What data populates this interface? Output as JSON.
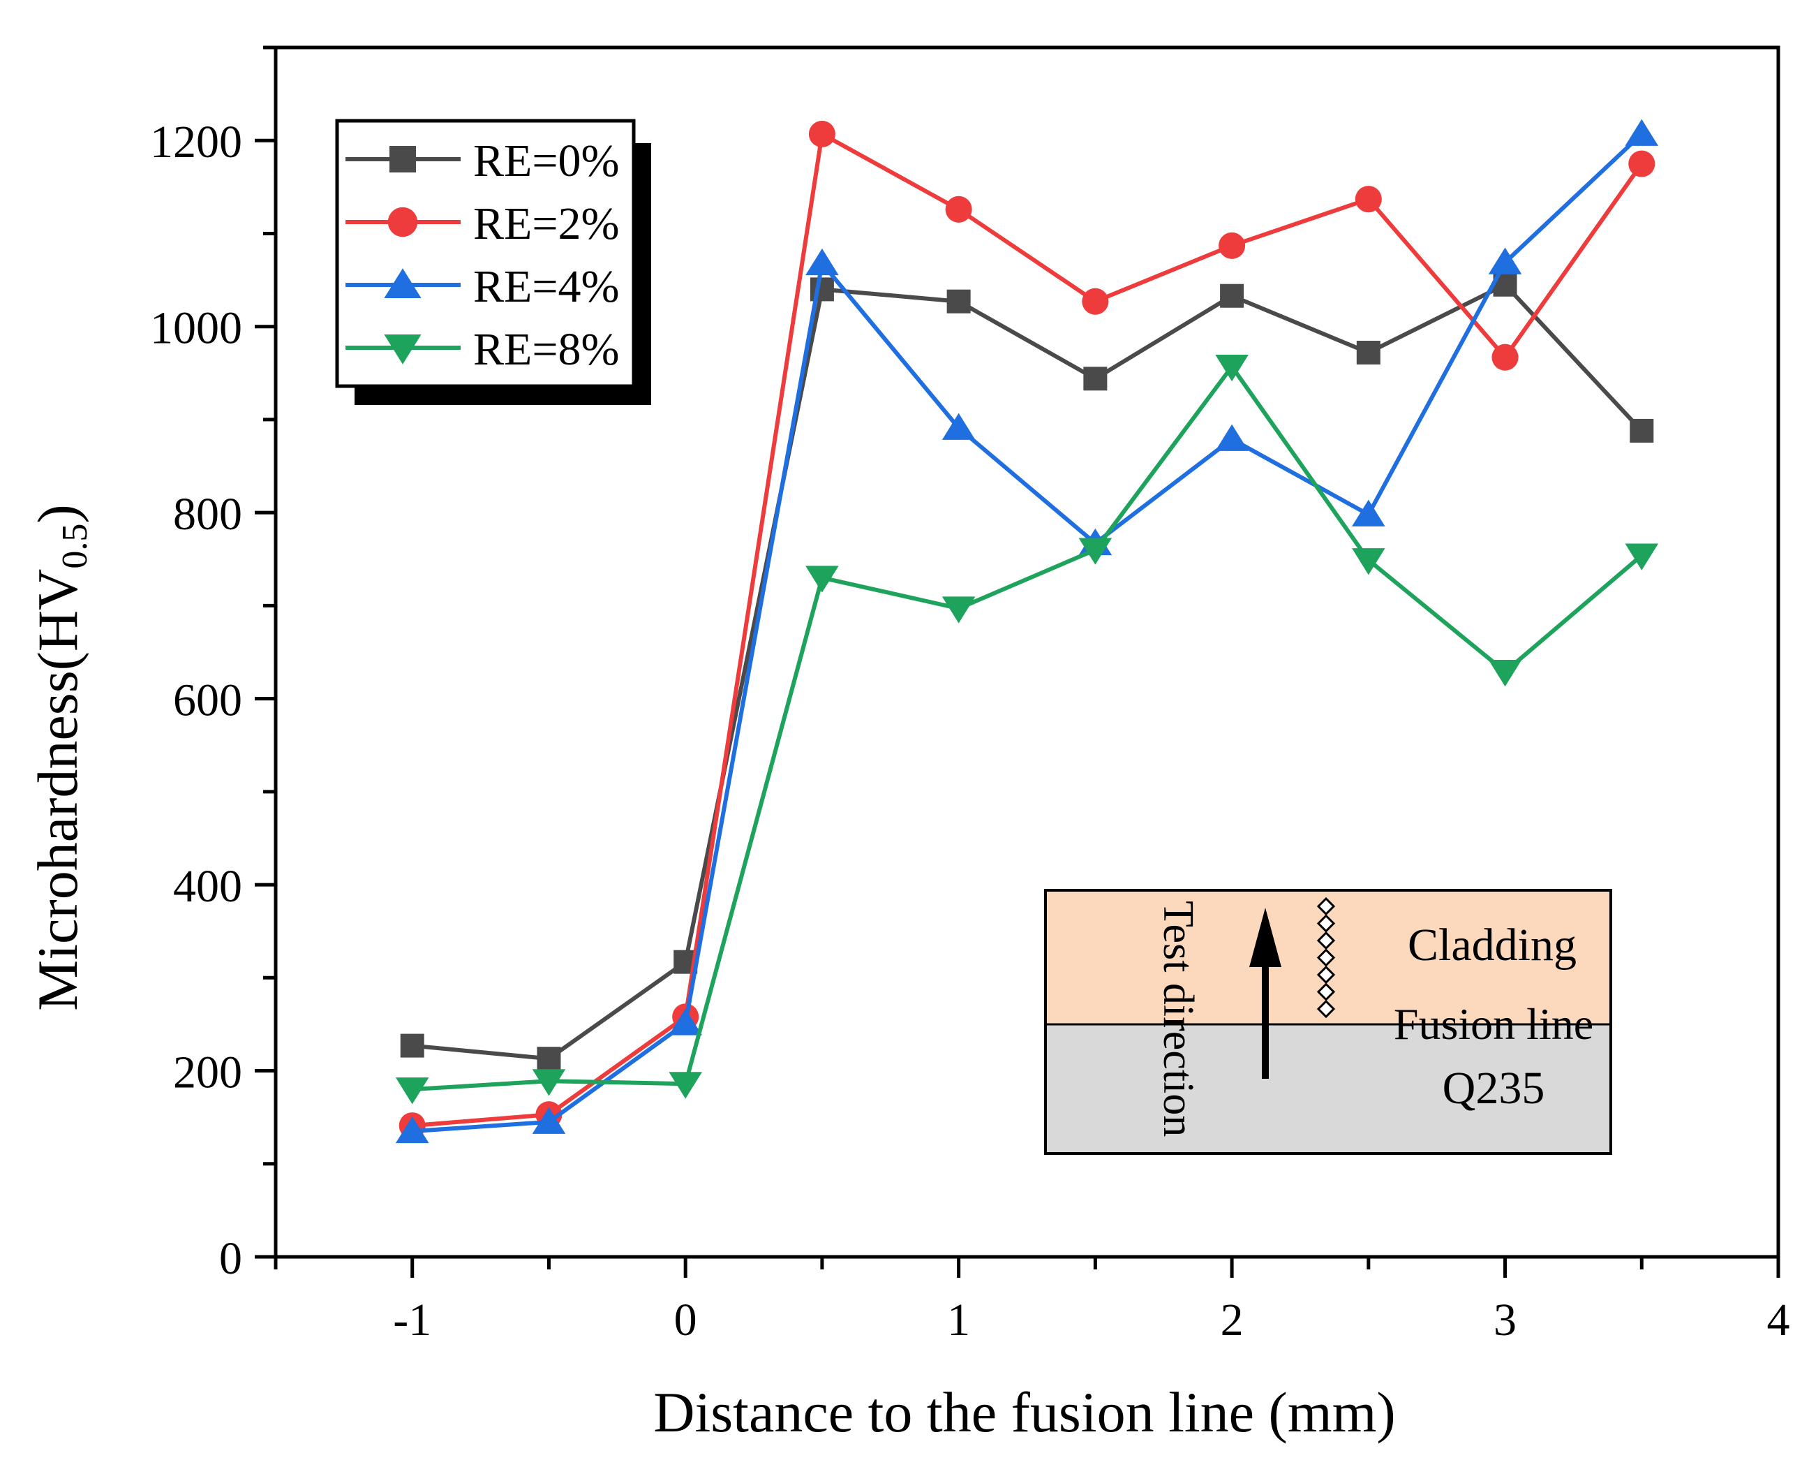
{
  "chart_data": {
    "type": "line",
    "title": "",
    "xlabel": "Distance to the fusion line (mm)",
    "ylabel_main": "Microhardness(HV",
    "ylabel_sub": "0.5",
    "ylabel_close": ")",
    "xlim": [
      -1.5,
      4
    ],
    "ylim": [
      0,
      1300
    ],
    "xticks": [
      -1,
      0,
      1,
      2,
      3,
      4
    ],
    "xtick_labels": [
      "-1",
      "0",
      "1",
      "2",
      "3",
      "4"
    ],
    "yticks": [
      0,
      200,
      400,
      600,
      800,
      1000,
      1200
    ],
    "ytick_labels": [
      "0",
      "200",
      "400",
      "600",
      "800",
      "1000",
      "1200"
    ],
    "legend_position": "top-left",
    "x": [
      -1,
      -0.5,
      0,
      0.5,
      1,
      1.5,
      2,
      2.5,
      3,
      3.5
    ],
    "series": [
      {
        "name": "RE=0%",
        "color": "#4a4a4a",
        "marker": "square",
        "values": [
          227,
          213,
          317,
          1040,
          1027,
          944,
          1033,
          972,
          1045,
          888
        ]
      },
      {
        "name": "RE=2%",
        "color": "#ee3b3b",
        "marker": "circle",
        "values": [
          141,
          153,
          258,
          1207,
          1126,
          1027,
          1087,
          1137,
          967,
          1175
        ]
      },
      {
        "name": "RE=4%",
        "color": "#1f6fe0",
        "marker": "triangle-up",
        "values": [
          135,
          145,
          251,
          1068,
          891,
          767,
          879,
          798,
          1069,
          1207
        ]
      },
      {
        "name": "RE=8%",
        "color": "#1ea35c",
        "marker": "triangle-down",
        "values": [
          180,
          189,
          186,
          730,
          697,
          760,
          957,
          749,
          629,
          754
        ]
      }
    ],
    "inset": {
      "cladding_label": "Cladding",
      "fusion_label": "Fusion line",
      "base_label": "Q235",
      "direction_label": "Test direction",
      "cladding_color": "#fcd9bd",
      "base_color": "#d9d9d9"
    }
  }
}
